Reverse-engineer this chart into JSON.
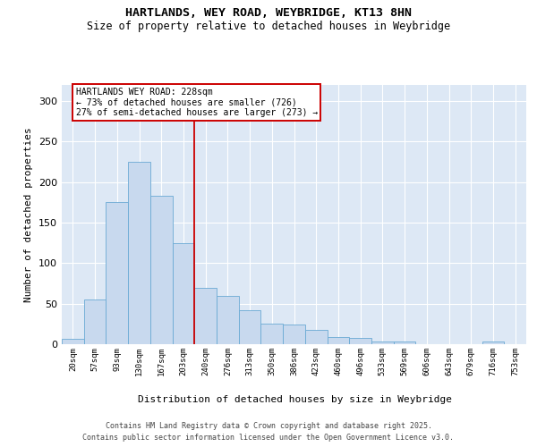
{
  "title1": "HARTLANDS, WEY ROAD, WEYBRIDGE, KT13 8HN",
  "title2": "Size of property relative to detached houses in Weybridge",
  "xlabel": "Distribution of detached houses by size in Weybridge",
  "ylabel": "Number of detached properties",
  "bar_color": "#c8d9ee",
  "bar_edge_color": "#6aaad4",
  "background_color": "#dde8f5",
  "categories": [
    "20sqm",
    "57sqm",
    "93sqm",
    "130sqm",
    "167sqm",
    "203sqm",
    "240sqm",
    "276sqm",
    "313sqm",
    "350sqm",
    "386sqm",
    "423sqm",
    "460sqm",
    "496sqm",
    "533sqm",
    "569sqm",
    "606sqm",
    "643sqm",
    "679sqm",
    "716sqm",
    "753sqm"
  ],
  "values": [
    7,
    55,
    175,
    225,
    183,
    125,
    70,
    60,
    42,
    25,
    24,
    18,
    9,
    8,
    3,
    3,
    0,
    0,
    0,
    3,
    0
  ],
  "vline_x_idx": 5.5,
  "vline_color": "#cc0000",
  "annotation_line1": "HARTLANDS WEY ROAD: 228sqm",
  "annotation_line2": "← 73% of detached houses are smaller (726)",
  "annotation_line3": "27% of semi-detached houses are larger (273) →",
  "annotation_box_color": "#ffffff",
  "annotation_box_edge": "#cc0000",
  "ylim": [
    0,
    320
  ],
  "yticks": [
    0,
    50,
    100,
    150,
    200,
    250,
    300
  ],
  "footer1": "Contains HM Land Registry data © Crown copyright and database right 2025.",
  "footer2": "Contains public sector information licensed under the Open Government Licence v3.0."
}
